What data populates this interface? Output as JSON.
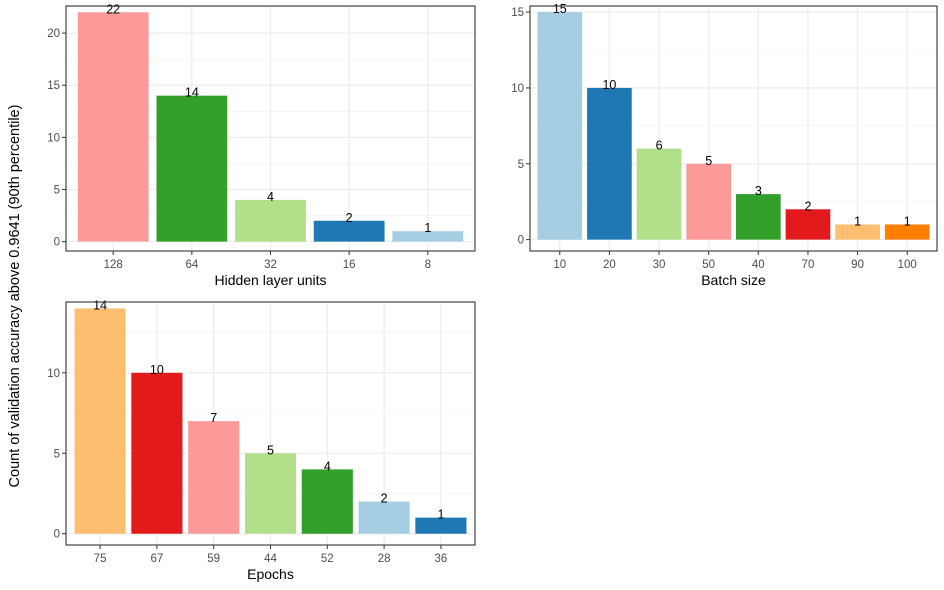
{
  "ylabel": "Count of validation accuracy above 0.9641 (90th percentile)",
  "chart_data": [
    {
      "type": "bar",
      "xlabel": "Hidden layer units",
      "categories": [
        "128",
        "64",
        "32",
        "16",
        "8"
      ],
      "values": [
        22,
        14,
        4,
        2,
        1
      ],
      "colors": [
        "#FB9A99",
        "#33A02C",
        "#B2DF8A",
        "#1F78B4",
        "#A6CEE3"
      ],
      "ylim": [
        -0.9,
        22.6
      ],
      "yticks": [
        0,
        5,
        10,
        15,
        20
      ],
      "grid": true
    },
    {
      "type": "bar",
      "xlabel": "Batch size",
      "categories": [
        "10",
        "20",
        "30",
        "50",
        "40",
        "70",
        "90",
        "100"
      ],
      "values": [
        15,
        10,
        6,
        5,
        3,
        2,
        1,
        1
      ],
      "colors": [
        "#A6CEE3",
        "#1F78B4",
        "#B2DF8A",
        "#FB9A99",
        "#33A02C",
        "#E31A1C",
        "#FDBF6F",
        "#FF7F00"
      ],
      "ylim": [
        -0.75,
        15.4
      ],
      "yticks": [
        0,
        5,
        10,
        15
      ],
      "grid": true
    },
    {
      "type": "bar",
      "xlabel": "Epochs",
      "categories": [
        "75",
        "67",
        "59",
        "44",
        "52",
        "28",
        "36"
      ],
      "values": [
        14,
        10,
        7,
        5,
        4,
        2,
        1
      ],
      "colors": [
        "#FDBF6F",
        "#E31A1C",
        "#FB9A99",
        "#B2DF8A",
        "#33A02C",
        "#A6CEE3",
        "#1F78B4"
      ],
      "ylim": [
        -0.7,
        14.4
      ],
      "yticks": [
        0,
        5,
        10
      ],
      "grid": true
    }
  ]
}
